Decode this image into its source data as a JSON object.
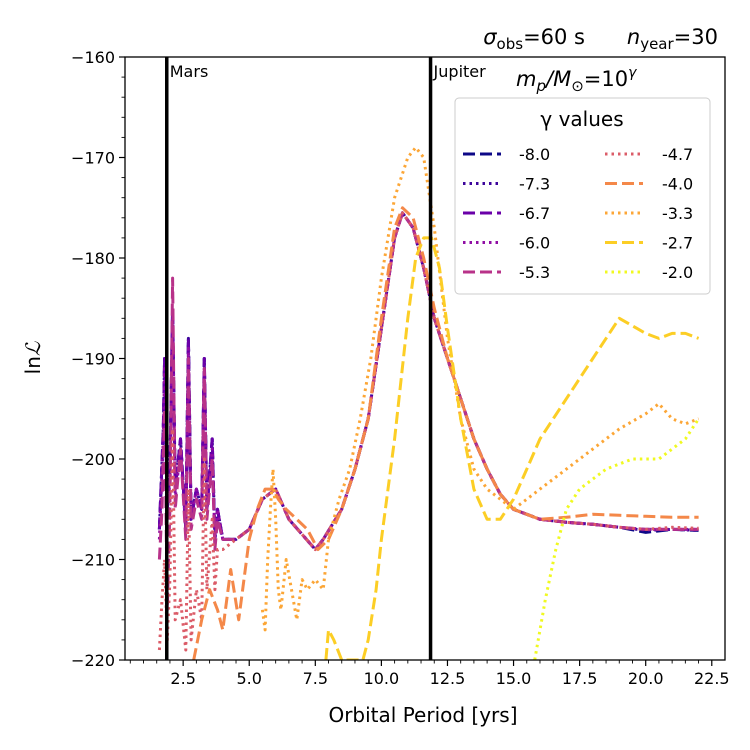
{
  "chart_data": {
    "type": "line",
    "title_left": "σobs=60 s",
    "title_right": "nyear=30",
    "title_left_parts": {
      "base": "σ",
      "sub": "obs",
      "rest": "=60 s"
    },
    "title_right_parts": {
      "base": "n",
      "sub": "year",
      "rest": "=30"
    },
    "annotation": "mp/M⊙=10^γ",
    "annotation_parts": {
      "m": "m",
      "p": "p",
      "slash": "/M",
      "sun": "⊙",
      "eq": "=10",
      "exp": "γ"
    },
    "xlabel": "Orbital Period [yrs]",
    "ylabel": "lnℒ",
    "ylabel_parts": {
      "ln": "ln",
      "L": "ℒ"
    },
    "xlim": [
      0.3,
      23.0
    ],
    "ylim": [
      -220,
      -160
    ],
    "xticks": [
      2.5,
      5.0,
      7.5,
      10.0,
      12.5,
      15.0,
      17.5,
      20.0,
      22.5
    ],
    "xtick_labels": [
      "2.5",
      "5.0",
      "7.5",
      "10.0",
      "12.5",
      "15.0",
      "17.5",
      "20.0",
      "22.5"
    ],
    "yticks": [
      -160,
      -170,
      -180,
      -190,
      -200,
      -210,
      -220
    ],
    "ytick_labels": [
      "−160",
      "−170",
      "−180",
      "−190",
      "−200",
      "−210",
      "−220"
    ],
    "vlines": [
      {
        "x": 1.88,
        "label": "Mars"
      },
      {
        "x": 11.86,
        "label": "Jupiter"
      }
    ],
    "legend": {
      "title": "γ values",
      "location": "upper-right",
      "columns": 2
    },
    "series": [
      {
        "name": "-8.0",
        "color": "#0d0887",
        "dash": "dashed",
        "x": [
          1.6,
          1.75,
          1.8,
          1.9,
          2.0,
          2.1,
          2.2,
          2.4,
          2.6,
          2.7,
          2.8,
          3.0,
          3.2,
          3.3,
          3.4,
          3.6,
          3.7,
          3.8,
          4.0,
          4.5,
          5.0,
          5.5,
          6.0,
          6.5,
          7.0,
          7.5,
          7.8,
          8.5,
          9.0,
          9.5,
          10.0,
          10.5,
          10.8,
          11.2,
          11.6,
          12.0,
          12.5,
          13.0,
          13.5,
          14.0,
          14.5,
          15.0,
          15.5,
          16.0,
          17.0,
          18.0,
          19.0,
          20.0,
          21.0,
          22.0
        ],
        "y": [
          -207,
          -197,
          -190,
          -205,
          -201,
          -185,
          -203,
          -198,
          -207,
          -188,
          -206,
          -203,
          -205,
          -190,
          -205,
          -198,
          -208,
          -205,
          -208,
          -208,
          -207,
          -204,
          -203,
          -206,
          -207.5,
          -209,
          -208,
          -205,
          -201,
          -196,
          -187,
          -178,
          -175.5,
          -177,
          -181,
          -186,
          -190,
          -194,
          -198,
          -201,
          -203.5,
          -205,
          -205.5,
          -206,
          -206.3,
          -206.5,
          -206.8,
          -207.3,
          -207,
          -207.1
        ]
      },
      {
        "name": "-7.3",
        "color": "#3c049b",
        "dash": "dotted",
        "x": [
          1.6,
          1.75,
          1.8,
          1.9,
          2.0,
          2.1,
          2.2,
          2.4,
          2.6,
          2.7,
          2.8,
          3.0,
          3.2,
          3.3,
          3.4,
          3.6,
          3.7,
          3.8,
          4.0,
          4.5,
          5.0,
          5.5,
          6.0,
          6.5,
          7.0,
          7.5,
          7.8,
          8.5,
          9.0,
          9.5,
          10.0,
          10.5,
          10.8,
          11.2,
          11.6,
          12.0,
          12.5,
          13.0,
          13.5,
          14.0,
          14.5,
          15.0,
          15.5,
          16.0,
          17.0,
          18.0,
          19.0,
          20.0,
          21.0,
          22.0
        ],
        "y": [
          -207,
          -197,
          -190,
          -205,
          -201,
          -185,
          -203,
          -198,
          -207,
          -188,
          -206,
          -203,
          -205,
          -190,
          -205,
          -198,
          -208,
          -205,
          -208,
          -208,
          -207,
          -204,
          -203,
          -206,
          -207.5,
          -209,
          -208,
          -205,
          -201,
          -196,
          -187,
          -178,
          -175.5,
          -177,
          -181,
          -186,
          -190,
          -194,
          -198,
          -201,
          -203.5,
          -205,
          -205.5,
          -206,
          -206.3,
          -206.5,
          -206.8,
          -207.1,
          -207,
          -207.1
        ]
      },
      {
        "name": "-6.7",
        "color": "#6a00a8",
        "dash": "dashed",
        "x": [
          1.6,
          1.75,
          1.8,
          1.9,
          2.0,
          2.1,
          2.2,
          2.4,
          2.6,
          2.7,
          2.8,
          3.0,
          3.2,
          3.3,
          3.4,
          3.6,
          3.7,
          3.8,
          4.0,
          4.5,
          5.0,
          5.5,
          6.0,
          6.5,
          7.0,
          7.5,
          7.8,
          8.5,
          9.0,
          9.5,
          10.0,
          10.5,
          10.8,
          11.2,
          11.6,
          12.0,
          12.5,
          13.0,
          13.5,
          14.0,
          14.5,
          15.0,
          15.5,
          16.0,
          17.0,
          18.0,
          19.0,
          20.0,
          21.0,
          22.0
        ],
        "y": [
          -207,
          -197,
          -190,
          -205,
          -201,
          -185,
          -203,
          -198,
          -207,
          -188,
          -206,
          -203,
          -205,
          -190,
          -205,
          -198,
          -208,
          -205,
          -208,
          -208,
          -207,
          -204,
          -203,
          -206,
          -207.5,
          -209,
          -208,
          -205,
          -201,
          -196,
          -187,
          -178,
          -175.5,
          -177,
          -181,
          -186,
          -190,
          -194,
          -198,
          -201,
          -203.5,
          -205,
          -205.5,
          -206,
          -206.3,
          -206.5,
          -206.8,
          -207,
          -207,
          -207
        ]
      },
      {
        "name": "-6.0",
        "color": "#900da4",
        "dash": "dotted",
        "x": [
          1.6,
          1.75,
          1.8,
          1.9,
          2.0,
          2.1,
          2.2,
          2.4,
          2.6,
          2.7,
          2.8,
          3.0,
          3.2,
          3.3,
          3.4,
          3.6,
          3.7,
          3.8,
          4.0,
          4.5,
          5.0,
          5.5,
          6.0,
          6.5,
          7.0,
          7.5,
          7.8,
          8.5,
          9.0,
          9.5,
          10.0,
          10.5,
          10.8,
          11.2,
          11.6,
          12.0,
          12.5,
          13.0,
          13.5,
          14.0,
          14.5,
          15.0,
          15.5,
          16.0,
          17.0,
          18.0,
          19.0,
          20.0,
          21.0,
          22.0
        ],
        "y": [
          -208,
          -198,
          -191,
          -206,
          -202,
          -185,
          -204,
          -199,
          -207,
          -189,
          -206,
          -203,
          -205,
          -191,
          -205,
          -199,
          -208,
          -205,
          -208,
          -208,
          -207,
          -204,
          -203,
          -206,
          -207.5,
          -209,
          -208,
          -205,
          -201,
          -196,
          -187,
          -178,
          -175.5,
          -177,
          -181,
          -186,
          -190,
          -194,
          -198,
          -201,
          -203.5,
          -205,
          -205.5,
          -206,
          -206.3,
          -206.5,
          -206.8,
          -207,
          -207,
          -207
        ]
      },
      {
        "name": "-5.3",
        "color": "#b83289",
        "dash": "dashed",
        "x": [
          1.6,
          1.7,
          1.8,
          1.9,
          2.0,
          2.1,
          2.2,
          2.4,
          2.6,
          2.7,
          2.8,
          3.0,
          3.2,
          3.3,
          3.4,
          3.6,
          3.7,
          3.8,
          4.0,
          4.5,
          5.0,
          5.5,
          6.0,
          6.5,
          7.0,
          7.5,
          7.8,
          8.5,
          9.0,
          9.5,
          10.0,
          10.5,
          10.8,
          11.2,
          11.6,
          12.0,
          12.5,
          13.0,
          13.5,
          14.0,
          14.5,
          15.0,
          15.5,
          16.0,
          17.0,
          18.0,
          19.0,
          20.0,
          21.0,
          22.0
        ],
        "y": [
          -210,
          -205,
          -195,
          -215,
          -205,
          -182,
          -205,
          -199,
          -208,
          -190,
          -207,
          -204,
          -206,
          -191,
          -206,
          -200,
          -209,
          -206,
          -208,
          -208,
          -207,
          -204,
          -203,
          -206,
          -207.5,
          -209,
          -208,
          -205,
          -201,
          -196,
          -187,
          -178,
          -175.5,
          -177,
          -181,
          -186,
          -190,
          -194,
          -198,
          -201,
          -203.5,
          -205,
          -205.5,
          -206,
          -206.3,
          -206.5,
          -206.8,
          -207,
          -207,
          -207
        ]
      },
      {
        "name": "-4.7",
        "color": "#db5c68",
        "dash": "dotted",
        "x": [
          1.6,
          1.7,
          1.8,
          1.9,
          2.0,
          2.1,
          2.2,
          2.4,
          2.6,
          2.7,
          2.8,
          3.0,
          3.2,
          3.3,
          3.4,
          3.6,
          3.7,
          3.8,
          4.0,
          4.5,
          5.0,
          5.5,
          6.0,
          6.5,
          7.0,
          7.5,
          7.8,
          8.5,
          9.0,
          9.5,
          10.0,
          10.5,
          10.8,
          11.2,
          11.6,
          12.0,
          12.5,
          13.0,
          13.5,
          14.0,
          14.5,
          15.0,
          15.5,
          16.0,
          17.0,
          18.0,
          19.0,
          20.0,
          21.0,
          22.0
        ],
        "y": [
          -219,
          -214,
          -210,
          -218,
          -212,
          -197,
          -216,
          -214,
          -219,
          -203,
          -218,
          -213,
          -216,
          -200,
          -213,
          -206,
          -213,
          -209,
          -209,
          -208,
          -207,
          -204,
          -203,
          -206,
          -207.5,
          -209,
          -208,
          -205,
          -201,
          -196,
          -187,
          -178,
          -175.5,
          -177,
          -181,
          -186,
          -190,
          -194,
          -198,
          -201,
          -203.5,
          -205,
          -205.5,
          -206,
          -206.3,
          -206.5,
          -206.8,
          -207,
          -206.8,
          -206.9
        ]
      },
      {
        "name": "-4.0",
        "color": "#f48849",
        "dash": "dashed",
        "x": [
          2.9,
          3.2,
          3.5,
          3.8,
          4.0,
          4.3,
          4.6,
          5.0,
          5.3,
          5.6,
          5.9,
          6.1,
          6.4,
          6.8,
          7.2,
          7.6,
          8.0,
          8.5,
          9.0,
          9.5,
          10.0,
          10.5,
          10.8,
          11.2,
          11.6,
          12.0,
          12.5,
          13.0,
          13.5,
          14.0,
          14.5,
          15.0,
          15.5,
          16.0,
          17.0,
          18.0,
          19.0,
          20.0,
          21.0,
          22.0
        ],
        "y": [
          -220,
          -216,
          -213,
          -215,
          -217,
          -211,
          -216,
          -208,
          -205,
          -203,
          -203,
          -204,
          -205,
          -206,
          -207,
          -209,
          -208,
          -205,
          -201,
          -196,
          -186,
          -177,
          -175,
          -176,
          -180,
          -185,
          -190,
          -194,
          -198,
          -201,
          -203.5,
          -205,
          -205.5,
          -206,
          -205.8,
          -205.5,
          -205.6,
          -205.7,
          -205.8,
          -205.8
        ]
      },
      {
        "name": "-3.3",
        "color": "#fca636",
        "dash": "dotted",
        "x": [
          5.5,
          5.6,
          5.7,
          5.8,
          5.9,
          6.0,
          6.1,
          6.2,
          6.4,
          6.6,
          6.8,
          7.0,
          7.2,
          7.5,
          7.8,
          8.0,
          8.4,
          8.8,
          9.2,
          9.6,
          10.0,
          10.5,
          11.0,
          11.3,
          11.6,
          12.0,
          12.5,
          13.0,
          13.5,
          14.0,
          14.5,
          15.0,
          15.5,
          16.0,
          17.0,
          18.0,
          19.0,
          20.0,
          20.5,
          21.0,
          21.5,
          22.0
        ],
        "y": [
          -215,
          -217,
          -210,
          -205,
          -201,
          -206,
          -213,
          -215,
          -210,
          -213,
          -216,
          -212,
          -213,
          -212,
          -213,
          -208,
          -204,
          -201,
          -196,
          -190,
          -182,
          -174,
          -170,
          -169,
          -170,
          -177,
          -188,
          -196,
          -201,
          -203,
          -204,
          -205,
          -204,
          -203,
          -201,
          -199,
          -197,
          -195.5,
          -194.5,
          -196,
          -196.5,
          -196
        ]
      },
      {
        "name": "-2.7",
        "color": "#fcce25",
        "dash": "dashed",
        "x": [
          7.9,
          8.0,
          8.2,
          8.5,
          8.8,
          9.0,
          9.3,
          9.5,
          9.8,
          10.0,
          10.5,
          11.0,
          11.3,
          11.6,
          11.9,
          12.2,
          12.5,
          13.0,
          13.5,
          14.0,
          14.5,
          15.0,
          15.5,
          16.0,
          17.0,
          18.0,
          19.0,
          20.0,
          20.5,
          21.0,
          21.5,
          22.0
        ],
        "y": [
          -220,
          -217,
          -218,
          -220,
          -220,
          -220,
          -220,
          -218,
          -213,
          -208,
          -198,
          -186,
          -180,
          -178,
          -178,
          -181,
          -187,
          -196,
          -203,
          -206,
          -206,
          -204,
          -201,
          -198,
          -194,
          -190,
          -186,
          -187.5,
          -188,
          -187.5,
          -187.5,
          -188
        ]
      },
      {
        "name": "-2.0",
        "color": "#f0f921",
        "dash": "dotted",
        "x": [
          15.8,
          16.2,
          16.6,
          17.0,
          17.5,
          18.0,
          18.5,
          19.0,
          19.5,
          20.0,
          20.5,
          21.0,
          21.5,
          22.0
        ],
        "y": [
          -220,
          -214,
          -209,
          -205,
          -203,
          -202,
          -201,
          -200.5,
          -200,
          -200,
          -200,
          -199,
          -198,
          -196
        ]
      }
    ]
  }
}
